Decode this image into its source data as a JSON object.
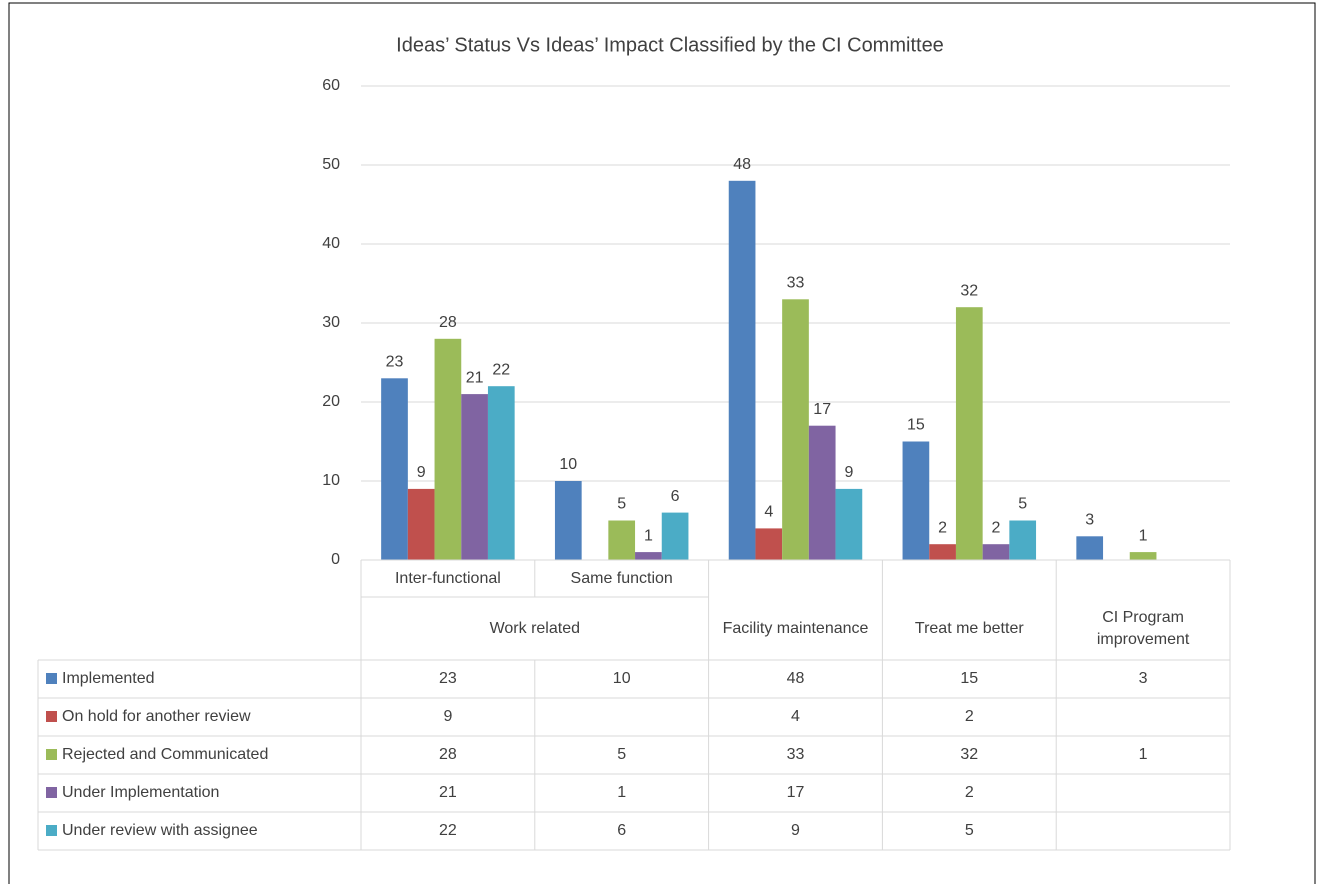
{
  "chart_data": {
    "type": "bar",
    "title": "Ideas’ Status Vs Ideas’ Impact Classified by the CI Committee",
    "category_groups": [
      {
        "name": "Work related",
        "categories": [
          "Inter-functional",
          "Same function"
        ]
      },
      {
        "name": "Facility maintenance",
        "categories": [
          null
        ]
      },
      {
        "name": "Treat me better",
        "categories": [
          null
        ]
      },
      {
        "name": "CI Program improvement",
        "categories": [
          null
        ]
      }
    ],
    "series": [
      {
        "name": "Implemented",
        "color": "#4f81bd",
        "values": [
          23,
          10,
          48,
          15,
          3
        ]
      },
      {
        "name": "On hold for another review",
        "color": "#c0504d",
        "values": [
          9,
          null,
          4,
          2,
          null
        ]
      },
      {
        "name": "Rejected and Communicated",
        "color": "#9bbb59",
        "values": [
          28,
          5,
          33,
          32,
          1
        ]
      },
      {
        "name": "Under Implementation",
        "color": "#8064a2",
        "values": [
          21,
          1,
          17,
          2,
          null
        ]
      },
      {
        "name": "Under review with assignee",
        "color": "#4bacc6",
        "values": [
          22,
          6,
          9,
          5,
          null
        ]
      }
    ],
    "ylim": [
      0,
      60
    ],
    "yticks": [
      0,
      10,
      20,
      30,
      40,
      50,
      60
    ],
    "grid": true,
    "data_table": true
  }
}
